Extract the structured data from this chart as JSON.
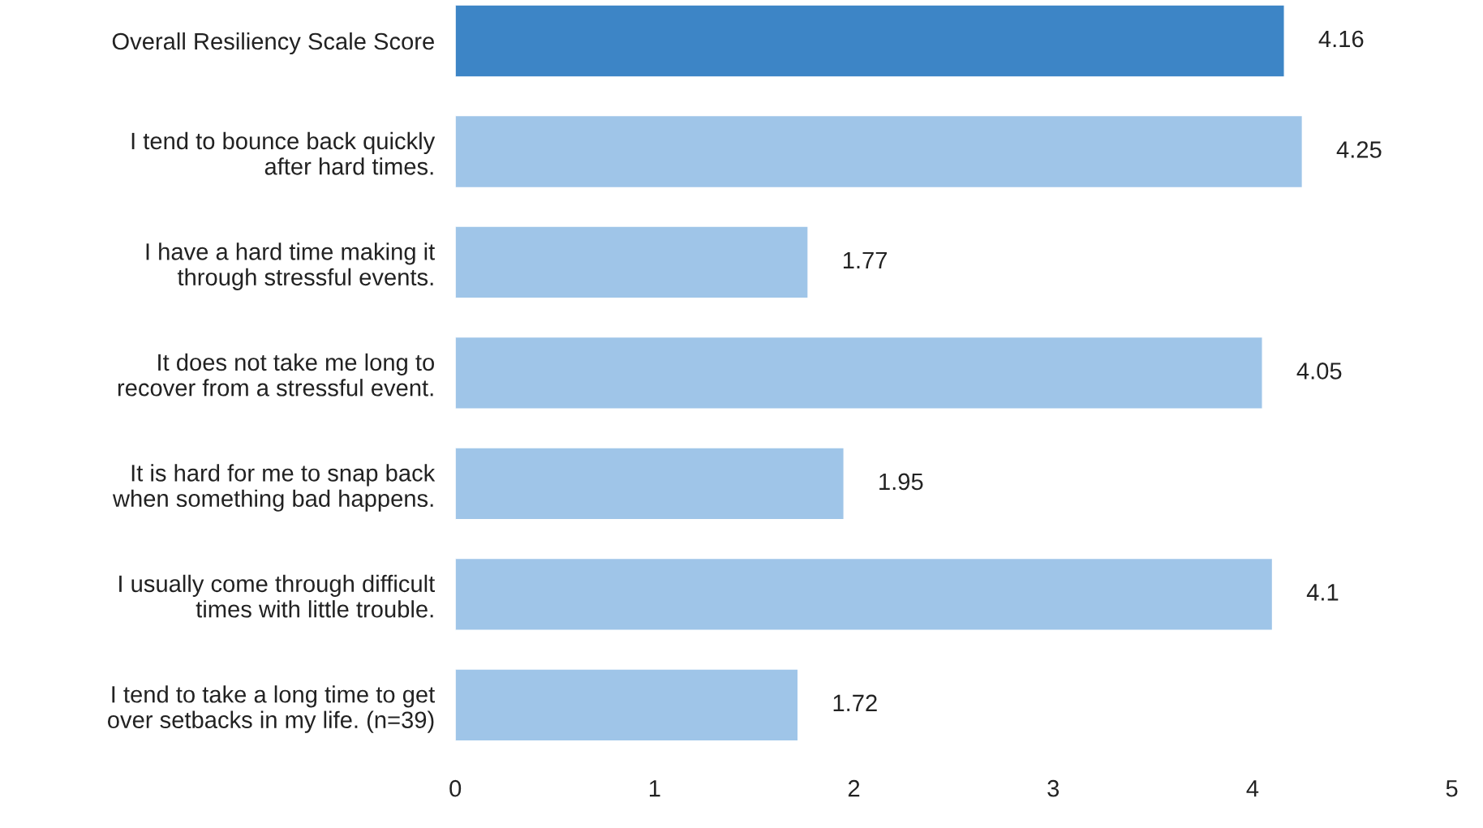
{
  "chart_data": {
    "type": "bar",
    "orientation": "horizontal",
    "categories": [
      "Overall Resiliency Scale Score",
      "I tend to bounce back quickly\nafter hard times.",
      "I have a hard time making it\nthrough stressful events.",
      "It does not take me long to\nrecover from a stressful event.",
      "It is hard for me to snap back\nwhen something bad happens.",
      "I usually come through difficult\ntimes with little trouble.",
      "I tend to take a long time to get\nover setbacks in my life. (n=39)"
    ],
    "values": [
      4.16,
      4.25,
      1.77,
      4.05,
      1.95,
      4.1,
      1.72
    ],
    "colors": [
      "#3d85c6",
      "#9fc5e8",
      "#9fc5e8",
      "#9fc5e8",
      "#9fc5e8",
      "#9fc5e8",
      "#9fc5e8"
    ],
    "xlim": [
      0,
      5
    ],
    "xticks": [
      0,
      1,
      2,
      3,
      4,
      5
    ],
    "data_labels": true,
    "grid": false,
    "legend": false
  }
}
